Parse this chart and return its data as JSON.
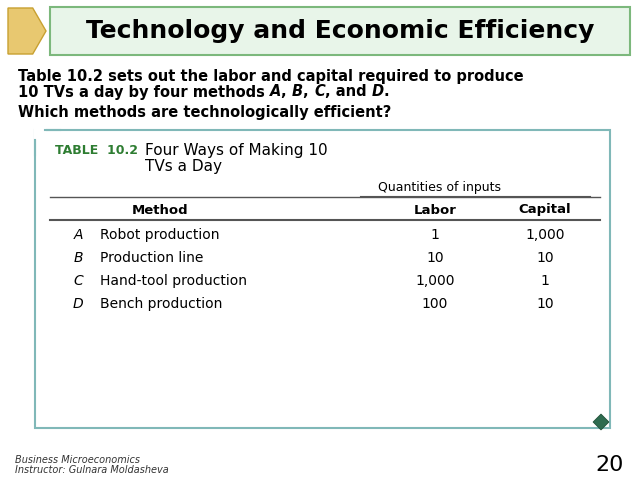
{
  "title": "Technology and Economic Efficiency",
  "title_bg_color": "#e8f5e9",
  "title_border_color": "#7cb87c",
  "title_text_color": "#000000",
  "body_bg_color": "#ffffff",
  "para2": "Which methods are technologically efficient?",
  "table_title_label": "TABLE  10.2",
  "table_title_label_color": "#2e7d32",
  "table_header_group": "Quantities of inputs",
  "table_col1_header": "Method",
  "table_col2_header": "Labor",
  "table_col3_header": "Capital",
  "table_rows": [
    {
      "letter": "A",
      "method": "Robot production",
      "labor": "1",
      "capital": "1,000"
    },
    {
      "letter": "B",
      "method": "Production line",
      "labor": "10",
      "capital": "10"
    },
    {
      "letter": "C",
      "method": "Hand-tool production",
      "labor": "1,000",
      "capital": "1"
    },
    {
      "letter": "D",
      "method": "Bench production",
      "labor": "100",
      "capital": "10"
    }
  ],
  "table_border_color": "#80b8b8",
  "footer_line1": "Business Microeconomics",
  "footer_line2": "Instructor: Gulnara Moldasheva",
  "page_number": "20",
  "arrow_fill": "#e8c870",
  "arrow_shadow": "#c8a030",
  "diamond_fill": "#2e6b4f"
}
